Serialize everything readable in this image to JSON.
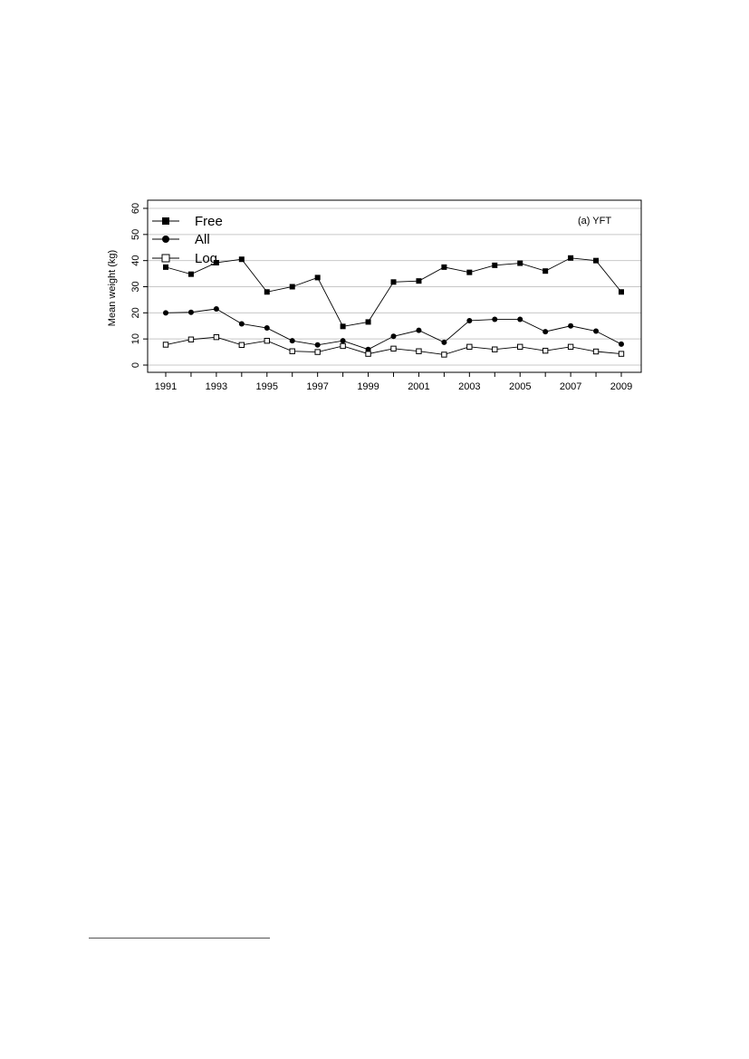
{
  "chart_data": {
    "type": "line",
    "title": "",
    "xlabel": "",
    "ylabel": "Mean weight (kg)",
    "panel_label": "(a) YFT",
    "x": [
      1991,
      1992,
      1993,
      1994,
      1995,
      1996,
      1997,
      1998,
      1999,
      2000,
      2001,
      2002,
      2003,
      2004,
      2005,
      2006,
      2007,
      2008,
      2009
    ],
    "xticks": [
      "1991",
      "1993",
      "1995",
      "1997",
      "1999",
      "2001",
      "2003",
      "2005",
      "2007",
      "2009"
    ],
    "xlim": [
      1991,
      2009
    ],
    "ylim": [
      0,
      60
    ],
    "yticks": [
      "0",
      "10",
      "20",
      "30",
      "40",
      "50",
      "60"
    ],
    "grid": "horizontal",
    "legend_position": "top-left",
    "series": [
      {
        "name": "Free",
        "marker": "filled-square",
        "values": [
          37.5,
          34.8,
          39.2,
          40.5,
          28.0,
          30.0,
          33.5,
          14.8,
          16.5,
          31.8,
          32.2,
          37.5,
          35.5,
          38.2,
          39.0,
          36.0,
          41.0,
          40.0,
          28.0
        ]
      },
      {
        "name": "All",
        "marker": "filled-circle",
        "values": [
          20.0,
          20.2,
          21.5,
          15.8,
          14.2,
          9.3,
          7.7,
          9.3,
          6.0,
          11.0,
          13.3,
          8.7,
          17.0,
          17.5,
          17.5,
          12.8,
          15.0,
          13.0,
          8.0
        ]
      },
      {
        "name": "Log",
        "marker": "open-square",
        "values": [
          7.8,
          9.8,
          10.7,
          7.7,
          9.3,
          5.3,
          5.0,
          7.3,
          4.3,
          6.3,
          5.3,
          4.0,
          7.0,
          6.0,
          7.0,
          5.5,
          7.0,
          5.2,
          4.3
        ]
      }
    ]
  }
}
